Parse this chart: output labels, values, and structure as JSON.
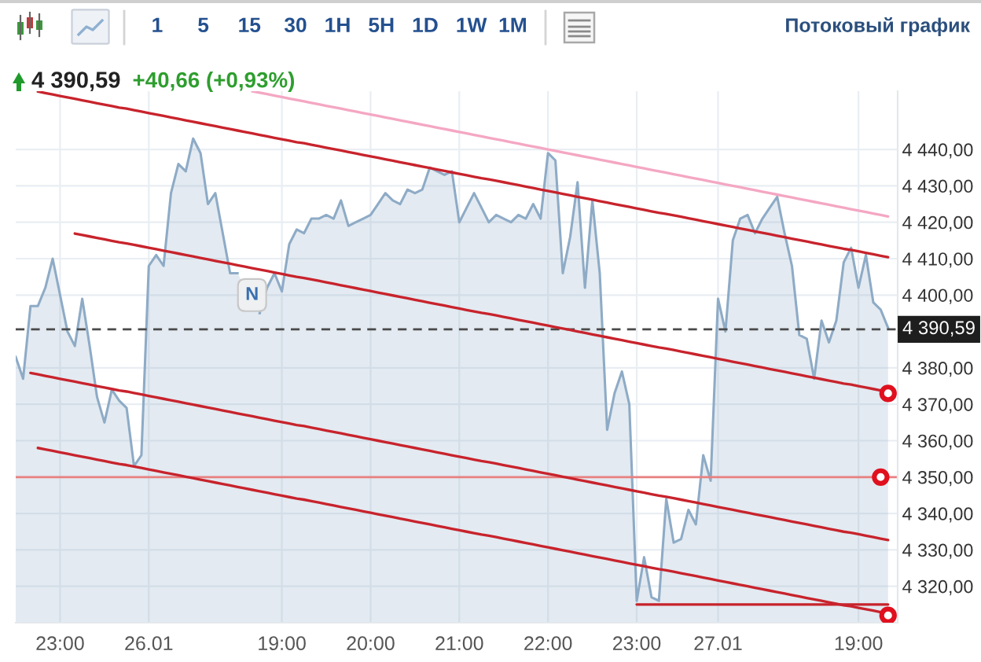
{
  "chart_data": {
    "type": "area",
    "title": "4 390,59",
    "subtitle": "+40,66 (+0,93%)",
    "annotations": [
      "1 5 15 30 1H 5H 1D 1W 1M",
      "Потоковый график",
      {
        "text": "N",
        "y": 4400
      }
    ],
    "categories": [
      null,
      null,
      null,
      null,
      null,
      null,
      "23:00",
      null,
      null,
      null,
      null,
      null,
      null,
      null,
      null,
      null,
      null,
      null,
      "26.01",
      null,
      null,
      null,
      null,
      null,
      null,
      null,
      null,
      null,
      null,
      null,
      null,
      null,
      null,
      null,
      null,
      null,
      "19:00",
      null,
      null,
      null,
      null,
      null,
      null,
      null,
      null,
      null,
      null,
      null,
      "20:00",
      null,
      null,
      null,
      null,
      null,
      null,
      null,
      null,
      null,
      null,
      null,
      "21:00",
      null,
      null,
      null,
      null,
      null,
      null,
      null,
      null,
      null,
      null,
      null,
      "22:00",
      null,
      null,
      null,
      null,
      null,
      null,
      null,
      null,
      null,
      null,
      null,
      "23:00",
      null,
      null,
      null,
      null,
      null,
      null,
      null,
      null,
      null,
      null,
      "27.01",
      null,
      null,
      null,
      null,
      null,
      null,
      null,
      null,
      null,
      null,
      null,
      null,
      null,
      null,
      null,
      null,
      null,
      null,
      "19:00",
      null,
      null,
      null,
      null
    ],
    "ylim": [
      4310,
      4456
    ],
    "yticks": [
      {
        "value": 4320,
        "label": "4 320,00"
      },
      {
        "value": 4330,
        "label": "4 330,00"
      },
      {
        "value": 4340,
        "label": "4 340,00"
      },
      {
        "value": 4350,
        "label": "4 350,00"
      },
      {
        "value": 4360,
        "label": "4 360,00"
      },
      {
        "value": 4370,
        "label": "4 370,00"
      },
      {
        "value": 4380,
        "label": "4 380,00"
      },
      {
        "value": 4400,
        "label": "4 400,00"
      },
      {
        "value": 4410,
        "label": "4 410,00"
      },
      {
        "value": 4420,
        "label": "4 420,00"
      },
      {
        "value": 4430,
        "label": "4 430,00"
      },
      {
        "value": 4440,
        "label": "4 440,00"
      }
    ],
    "grid": true,
    "series": [
      {
        "color": "#8eabc6",
        "values": [
          4383,
          4377,
          4397,
          4397,
          4402,
          4410,
          4400,
          4390,
          4386,
          4399,
          4386,
          4372,
          4365,
          4374,
          4371,
          4369,
          4353,
          4356,
          4408,
          4411,
          4408,
          4428,
          4436,
          4434,
          4443,
          4439,
          4425,
          4428,
          4417,
          4406,
          4406,
          null,
          null,
          4395,
          4402,
          4406,
          4401,
          4414,
          4418,
          4417,
          4421,
          4421,
          4422,
          4421,
          4426,
          4419,
          4420,
          4421,
          4422,
          4425,
          4428,
          4426,
          4425,
          4429,
          4428,
          4429,
          4435,
          4434,
          4433,
          4434,
          4420,
          4424,
          4428,
          4424,
          4420,
          4422,
          4421,
          4420,
          4422,
          4421,
          4425,
          4421,
          4439,
          4437,
          4406,
          4416,
          4431,
          4402,
          4426,
          4406,
          4363,
          4373,
          4379,
          4370,
          4316,
          4328,
          4317,
          4316,
          4344,
          4332,
          4333,
          4341,
          4337,
          4356,
          4349,
          4399,
          4390,
          4415,
          4421,
          4422,
          4417,
          4421,
          4424,
          4427,
          4417,
          4408,
          4389,
          4388,
          4377,
          4393,
          4387,
          4393,
          4409,
          4413,
          4402,
          4411,
          4398,
          4396,
          4391
        ]
      },
      {
        "type": "line",
        "color": "#c8232c",
        "values": [
          null,
          null,
          null,
          4455.9,
          4455.5,
          4455.1,
          4454.7,
          4454.3,
          4453.9,
          4453.5,
          4453.1,
          4452.7,
          4452.3,
          4451.9,
          4451.5,
          4451.2,
          4450.8,
          4450.4,
          4450.0,
          4449.6,
          4449.2,
          4448.8,
          4448.4,
          4448.0,
          4447.6,
          4447.2,
          4446.8,
          4446.4,
          4446.0,
          4445.6,
          4445.2,
          4444.8,
          4444.4,
          4444.0,
          4443.6,
          4443.2,
          4442.8,
          4442.4,
          4442.0,
          4441.7,
          4441.3,
          4440.9,
          4440.5,
          4440.1,
          4439.7,
          4439.3,
          4438.9,
          4438.5,
          4438.1,
          4437.7,
          4437.3,
          4436.9,
          4436.5,
          4436.1,
          4435.7,
          4435.3,
          4434.9,
          4434.5,
          4434.1,
          4433.7,
          4433.3,
          4432.9,
          4432.5,
          4432.1,
          4431.8,
          4431.4,
          4431.0,
          4430.6,
          4430.2,
          4429.8,
          4429.4,
          4429.0,
          4428.6,
          4428.2,
          4427.8,
          4427.4,
          4427.0,
          4426.6,
          4426.2,
          4425.8,
          4425.4,
          4425.0,
          4424.6,
          4424.2,
          4423.8,
          4423.4,
          4423.0,
          4422.6,
          4422.3,
          4421.9,
          4421.5,
          4421.1,
          4420.7,
          4420.3,
          4419.9,
          4419.5,
          4419.1,
          4418.7,
          4418.3,
          4417.9,
          4417.5,
          4417.1,
          4416.7,
          4416.3,
          4415.9,
          4415.5,
          4415.1,
          4414.7,
          4414.3,
          4413.9,
          4413.5,
          4413.1,
          4412.7,
          4412.4,
          4412.0,
          4411.6,
          4411.2,
          4410.8,
          4410.4
        ]
      },
      {
        "type": "line",
        "color": "#f4a7c3",
        "values": [
          null,
          null,
          null,
          null,
          null,
          null,
          null,
          null,
          null,
          null,
          null,
          null,
          null,
          null,
          null,
          null,
          null,
          null,
          null,
          null,
          null,
          null,
          null,
          null,
          null,
          null,
          null,
          null,
          null,
          null,
          null,
          null,
          4456.0,
          4455.6,
          4455.2,
          4454.8,
          4454.4,
          4454.0,
          4453.6,
          4453.2,
          4452.8,
          4452.4,
          4452.0,
          4451.6,
          4451.2,
          4450.8,
          4450.4,
          4450.0,
          4449.6,
          4449.2,
          4448.8,
          4448.4,
          4448.0,
          4447.6,
          4447.2,
          4446.8,
          4446.4,
          4446.0,
          4445.6,
          4445.2,
          4444.8,
          4444.4,
          4444.0,
          4443.6,
          4443.2,
          4442.8,
          4442.4,
          4442.0,
          4441.6,
          4441.2,
          4440.8,
          4440.4,
          4440.0,
          4439.6,
          4439.2,
          4438.8,
          4438.4,
          4438.0,
          4437.6,
          4437.2,
          4436.8,
          4436.4,
          4436.0,
          4435.6,
          4435.2,
          4434.8,
          4434.4,
          4434.0,
          4433.6,
          4433.2,
          4432.8,
          4432.4,
          4432.0,
          4431.6,
          4431.2,
          4430.8,
          4430.4,
          4430.0,
          4429.6,
          4429.2,
          4428.8,
          4428.4,
          4428.0,
          4427.6,
          4427.2,
          4426.8,
          4426.4,
          4426.0,
          4425.6,
          4425.2,
          4424.8,
          4424.4,
          4424.0,
          4423.6,
          4423.2,
          4422.8,
          4422.4,
          4422.0,
          4421.6
        ]
      },
      {
        "type": "line",
        "color": "#c8232c",
        "values": [
          null,
          null,
          null,
          null,
          null,
          null,
          null,
          null,
          4416.9,
          4416.5,
          4416.1,
          4415.7,
          4415.3,
          4414.9,
          4414.5,
          4414.2,
          4413.8,
          4413.4,
          4413.0,
          4412.6,
          4412.2,
          4411.8,
          4411.4,
          4411.0,
          4410.6,
          4410.2,
          4409.8,
          4409.4,
          4409.0,
          4408.6,
          4408.2,
          4407.8,
          4407.4,
          4407.0,
          4406.6,
          4406.2,
          4405.8,
          4405.4,
          4405.0,
          4404.7,
          4404.3,
          4403.9,
          4403.5,
          4403.1,
          4402.7,
          4402.3,
          4401.9,
          4401.5,
          4401.1,
          4400.7,
          4400.3,
          4399.9,
          4399.5,
          4399.1,
          4398.7,
          4398.3,
          4397.9,
          4397.5,
          4397.1,
          4396.7,
          4396.3,
          4395.9,
          4395.5,
          4395.1,
          4394.8,
          4394.4,
          4394.0,
          4393.6,
          4393.2,
          4392.8,
          4392.4,
          4392.0,
          4391.6,
          4391.2,
          4390.8,
          4390.4,
          4390.0,
          4389.6,
          4389.2,
          4388.8,
          4388.4,
          4388.0,
          4387.6,
          4387.2,
          4386.8,
          4386.4,
          4386.0,
          4385.6,
          4385.3,
          4384.9,
          4384.5,
          4384.1,
          4383.7,
          4383.3,
          4382.9,
          4382.5,
          4382.1,
          4381.7,
          4381.3,
          4380.9,
          4380.5,
          4380.1,
          4379.7,
          4379.3,
          4378.9,
          4378.5,
          4378.1,
          4377.7,
          4377.3,
          4376.9,
          4376.5,
          4376.1,
          4375.7,
          4375.4,
          4375.0,
          4374.6,
          4374.2,
          4373.8,
          4373.4
        ]
      },
      {
        "type": "line",
        "color": "#c8232c",
        "values": [
          null,
          null,
          4378.6,
          4378.2,
          4377.8,
          4377.4,
          4377.0,
          4376.6,
          4376.2,
          4375.8,
          4375.4,
          4375.0,
          4374.6,
          4374.2,
          4373.8,
          4373.5,
          4373.1,
          4372.7,
          4372.3,
          4371.9,
          4371.5,
          4371.1,
          4370.7,
          4370.3,
          4369.9,
          4369.5,
          4369.1,
          4368.7,
          4368.3,
          4367.9,
          4367.5,
          4367.1,
          4366.7,
          4366.3,
          4365.9,
          4365.5,
          4365.1,
          4364.7,
          4364.3,
          4364.0,
          4363.6,
          4363.2,
          4362.8,
          4362.4,
          4362.0,
          4361.6,
          4361.2,
          4360.8,
          4360.4,
          4360.0,
          4359.6,
          4359.2,
          4358.8,
          4358.4,
          4358.0,
          4357.6,
          4357.2,
          4356.8,
          4356.4,
          4356.0,
          4355.6,
          4355.2,
          4354.8,
          4354.4,
          4354.1,
          4353.7,
          4353.3,
          4352.9,
          4352.5,
          4352.1,
          4351.7,
          4351.3,
          4350.9,
          4350.5,
          4350.1,
          4349.7,
          4349.3,
          4348.9,
          4348.5,
          4348.1,
          4347.7,
          4347.3,
          4346.9,
          4346.5,
          4346.1,
          4345.7,
          4345.3,
          4344.9,
          4344.6,
          4344.2,
          4343.8,
          4343.4,
          4343.0,
          4342.6,
          4342.2,
          4341.8,
          4341.4,
          4341.0,
          4340.6,
          4340.2,
          4339.8,
          4339.4,
          4339.0,
          4338.6,
          4338.2,
          4337.8,
          4337.4,
          4337.0,
          4336.6,
          4336.2,
          4335.8,
          4335.4,
          4335.0,
          4334.7,
          4334.3,
          4333.9,
          4333.5,
          4333.1,
          4332.7
        ]
      },
      {
        "type": "line",
        "color": "#c8232c",
        "values": [
          null,
          null,
          null,
          4358.0,
          4357.6,
          4357.2,
          4356.8,
          4356.4,
          4356.0,
          4355.6,
          4355.2,
          4354.8,
          4354.4,
          4354.0,
          4353.6,
          4353.3,
          4352.9,
          4352.5,
          4352.1,
          4351.7,
          4351.3,
          4350.9,
          4350.5,
          4350.1,
          4349.7,
          4349.3,
          4348.9,
          4348.5,
          4348.1,
          4347.7,
          4347.3,
          4346.9,
          4346.5,
          4346.1,
          4345.7,
          4345.3,
          4344.9,
          4344.5,
          4344.1,
          4343.8,
          4343.4,
          4343.0,
          4342.6,
          4342.2,
          4341.8,
          4341.4,
          4341.0,
          4340.6,
          4340.2,
          4339.8,
          4339.4,
          4339.0,
          4338.6,
          4338.2,
          4337.8,
          4337.4,
          4337.0,
          4336.6,
          4336.2,
          4335.8,
          4335.4,
          4335.0,
          4334.6,
          4334.2,
          4333.9,
          4333.5,
          4333.1,
          4332.7,
          4332.3,
          4331.9,
          4331.5,
          4331.1,
          4330.7,
          4330.3,
          4329.9,
          4329.5,
          4329.1,
          4328.7,
          4328.3,
          4327.9,
          4327.5,
          4327.1,
          4326.7,
          4326.3,
          4325.9,
          4325.5,
          4325.1,
          4324.7,
          4324.4,
          4324.0,
          4323.6,
          4323.2,
          4322.8,
          4322.4,
          4322.0,
          4321.6,
          4321.2,
          4320.8,
          4320.4,
          4320.0,
          4319.6,
          4319.2,
          4318.8,
          4318.4,
          4318.0,
          4317.6,
          4317.2,
          4316.8,
          4316.4,
          4316.0,
          4315.6,
          4315.2,
          4314.8,
          4314.5,
          4314.1,
          4313.7,
          4313.3,
          4312.9,
          4312.5
        ]
      },
      {
        "type": "line",
        "color": "#c8232c",
        "values": [
          null,
          null,
          null,
          null,
          null,
          null,
          null,
          null,
          null,
          null,
          null,
          null,
          null,
          null,
          null,
          null,
          null,
          null,
          null,
          null,
          null,
          null,
          null,
          null,
          null,
          null,
          null,
          null,
          null,
          null,
          null,
          null,
          null,
          null,
          null,
          null,
          null,
          null,
          null,
          null,
          null,
          null,
          null,
          null,
          null,
          null,
          null,
          null,
          null,
          null,
          null,
          null,
          null,
          null,
          null,
          null,
          null,
          null,
          null,
          null,
          null,
          null,
          null,
          null,
          null,
          null,
          null,
          null,
          null,
          null,
          null,
          null,
          null,
          null,
          null,
          null,
          null,
          null,
          null,
          null,
          null,
          null,
          null,
          null,
          4315,
          4315,
          4315,
          4315,
          4315,
          4315,
          4315,
          4315,
          4315,
          4315,
          4315,
          4315,
          4315,
          4315,
          4315,
          4315,
          4315,
          4315,
          4315,
          4315,
          4315,
          4315,
          4315,
          4315,
          4315,
          4315,
          4315,
          4315,
          4315,
          4315,
          4315,
          4315,
          4315,
          4315,
          4315
        ]
      },
      {
        "type": "scatter",
        "color": "#e0101e",
        "marker": "circle",
        "values": [
          null,
          null,
          null,
          null,
          null,
          null,
          null,
          null,
          null,
          null,
          null,
          null,
          null,
          null,
          null,
          null,
          null,
          null,
          null,
          null,
          null,
          null,
          null,
          null,
          null,
          null,
          null,
          null,
          null,
          null,
          null,
          null,
          null,
          null,
          null,
          null,
          null,
          null,
          null,
          null,
          null,
          null,
          null,
          null,
          null,
          null,
          null,
          null,
          null,
          null,
          null,
          null,
          null,
          null,
          null,
          null,
          null,
          null,
          null,
          null,
          null,
          null,
          null,
          null,
          null,
          null,
          null,
          null,
          null,
          null,
          null,
          null,
          null,
          null,
          null,
          null,
          null,
          null,
          null,
          null,
          null,
          null,
          null,
          null,
          null,
          null,
          null,
          null,
          null,
          null,
          null,
          null,
          null,
          null,
          null,
          null,
          null,
          null,
          null,
          null,
          null,
          null,
          null,
          null,
          null,
          null,
          null,
          null,
          null,
          null,
          null,
          null,
          null,
          null,
          null,
          null,
          null,
          4350,
          4373
        ]
      },
      {
        "type": "scatter",
        "color": "#e0101e",
        "marker": "circle",
        "values": [
          null,
          null,
          null,
          null,
          null,
          null,
          null,
          null,
          null,
          null,
          null,
          null,
          null,
          null,
          null,
          null,
          null,
          null,
          null,
          null,
          null,
          null,
          null,
          null,
          null,
          null,
          null,
          null,
          null,
          null,
          null,
          null,
          null,
          null,
          null,
          null,
          null,
          null,
          null,
          null,
          null,
          null,
          null,
          null,
          null,
          null,
          null,
          null,
          null,
          null,
          null,
          null,
          null,
          null,
          null,
          null,
          null,
          null,
          null,
          null,
          null,
          null,
          null,
          null,
          null,
          null,
          null,
          null,
          null,
          null,
          null,
          null,
          null,
          null,
          null,
          null,
          null,
          null,
          null,
          null,
          null,
          null,
          null,
          null,
          null,
          null,
          null,
          null,
          null,
          null,
          null,
          null,
          null,
          null,
          null,
          null,
          null,
          null,
          null,
          null,
          null,
          null,
          null,
          null,
          null,
          null,
          null,
          null,
          null,
          null,
          null,
          null,
          null,
          null,
          null,
          null,
          null,
          null,
          4312
        ]
      }
    ],
    "ref_lines": [
      {
        "axis": "y",
        "value": 4390.59,
        "label": "4 390,59",
        "color": "#4a4a4a",
        "line_style": "dashed"
      },
      {
        "axis": "y",
        "value": 4350,
        "color": "#e88080",
        "line_style": "solid"
      }
    ]
  }
}
